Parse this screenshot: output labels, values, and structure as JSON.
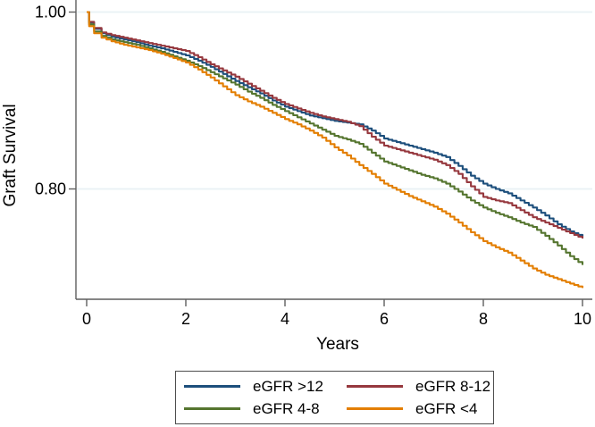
{
  "chart_data": {
    "type": "line",
    "subtype": "kaplan-meier-step",
    "title": "",
    "xlabel": "Years",
    "ylabel": "Graft Survival",
    "xlim": [
      0,
      10
    ],
    "ylim": [
      0.675,
      1.0
    ],
    "x_ticks": [
      0,
      2,
      4,
      6,
      8,
      10
    ],
    "x_tick_labels": [
      "0",
      "2",
      "4",
      "6",
      "8",
      "10"
    ],
    "y_ticks": [
      {
        "value": 1.0,
        "label": "1.00"
      },
      {
        "value": 0.8,
        "label": "0.80"
      }
    ],
    "grid": "horizontal-at-y-ticks",
    "grid_color": "#e9f1f4",
    "axis_color": "#5f5f5f",
    "legend_position": "bottom-outside-boxed",
    "series": [
      {
        "name": "eGFR >12",
        "color": "#1d4f7c",
        "points": [
          [
            0,
            1.0
          ],
          [
            0.05,
            0.988
          ],
          [
            0.15,
            0.981
          ],
          [
            0.3,
            0.976
          ],
          [
            0.5,
            0.972
          ],
          [
            0.75,
            0.969
          ],
          [
            1,
            0.966
          ],
          [
            1.25,
            0.962
          ],
          [
            1.5,
            0.959
          ],
          [
            1.75,
            0.955
          ],
          [
            2,
            0.951
          ],
          [
            2.25,
            0.945
          ],
          [
            2.5,
            0.938
          ],
          [
            2.75,
            0.93
          ],
          [
            3,
            0.922
          ],
          [
            3.25,
            0.915
          ],
          [
            3.5,
            0.908
          ],
          [
            3.75,
            0.9
          ],
          [
            4,
            0.893
          ],
          [
            4.25,
            0.888
          ],
          [
            4.5,
            0.883
          ],
          [
            4.75,
            0.88
          ],
          [
            5,
            0.877
          ],
          [
            5.25,
            0.875
          ],
          [
            5.5,
            0.873
          ],
          [
            5.75,
            0.866
          ],
          [
            6,
            0.857
          ],
          [
            6.25,
            0.853
          ],
          [
            6.5,
            0.849
          ],
          [
            6.75,
            0.845
          ],
          [
            7,
            0.841
          ],
          [
            7.25,
            0.836
          ],
          [
            7.5,
            0.826
          ],
          [
            7.75,
            0.815
          ],
          [
            8,
            0.806
          ],
          [
            8.25,
            0.8
          ],
          [
            8.5,
            0.795
          ],
          [
            8.75,
            0.787
          ],
          [
            9,
            0.779
          ],
          [
            9.25,
            0.77
          ],
          [
            9.5,
            0.76
          ],
          [
            9.75,
            0.752
          ],
          [
            10,
            0.746
          ]
        ]
      },
      {
        "name": "eGFR 8-12",
        "color": "#96383e",
        "points": [
          [
            0,
            1.0
          ],
          [
            0.05,
            0.989
          ],
          [
            0.15,
            0.982
          ],
          [
            0.3,
            0.977
          ],
          [
            0.5,
            0.974
          ],
          [
            0.75,
            0.971
          ],
          [
            1,
            0.968
          ],
          [
            1.25,
            0.965
          ],
          [
            1.5,
            0.962
          ],
          [
            1.75,
            0.959
          ],
          [
            2,
            0.956
          ],
          [
            2.25,
            0.949
          ],
          [
            2.5,
            0.941
          ],
          [
            2.75,
            0.934
          ],
          [
            3,
            0.927
          ],
          [
            3.25,
            0.919
          ],
          [
            3.5,
            0.911
          ],
          [
            3.75,
            0.903
          ],
          [
            4,
            0.896
          ],
          [
            4.25,
            0.891
          ],
          [
            4.5,
            0.886
          ],
          [
            4.75,
            0.882
          ],
          [
            5,
            0.879
          ],
          [
            5.25,
            0.876
          ],
          [
            5.5,
            0.871
          ],
          [
            5.75,
            0.859
          ],
          [
            6,
            0.849
          ],
          [
            6.25,
            0.845
          ],
          [
            6.5,
            0.841
          ],
          [
            6.75,
            0.837
          ],
          [
            7,
            0.833
          ],
          [
            7.25,
            0.827
          ],
          [
            7.5,
            0.817
          ],
          [
            7.75,
            0.803
          ],
          [
            8,
            0.791
          ],
          [
            8.25,
            0.787
          ],
          [
            8.5,
            0.784
          ],
          [
            8.75,
            0.776
          ],
          [
            9,
            0.768
          ],
          [
            9.25,
            0.762
          ],
          [
            9.5,
            0.756
          ],
          [
            9.75,
            0.75
          ],
          [
            10,
            0.744
          ]
        ]
      },
      {
        "name": "eGFR 4-8",
        "color": "#55752f",
        "points": [
          [
            0,
            1.0
          ],
          [
            0.05,
            0.986
          ],
          [
            0.15,
            0.978
          ],
          [
            0.3,
            0.973
          ],
          [
            0.5,
            0.969
          ],
          [
            0.75,
            0.966
          ],
          [
            1,
            0.963
          ],
          [
            1.25,
            0.959
          ],
          [
            1.5,
            0.955
          ],
          [
            1.75,
            0.95
          ],
          [
            2,
            0.945
          ],
          [
            2.25,
            0.939
          ],
          [
            2.5,
            0.932
          ],
          [
            2.75,
            0.925
          ],
          [
            3,
            0.918
          ],
          [
            3.25,
            0.91
          ],
          [
            3.5,
            0.903
          ],
          [
            3.75,
            0.895
          ],
          [
            4,
            0.888
          ],
          [
            4.25,
            0.881
          ],
          [
            4.5,
            0.874
          ],
          [
            4.75,
            0.867
          ],
          [
            5,
            0.86
          ],
          [
            5.25,
            0.856
          ],
          [
            5.5,
            0.851
          ],
          [
            5.75,
            0.841
          ],
          [
            6,
            0.831
          ],
          [
            6.25,
            0.826
          ],
          [
            6.5,
            0.821
          ],
          [
            6.75,
            0.816
          ],
          [
            7,
            0.812
          ],
          [
            7.25,
            0.806
          ],
          [
            7.5,
            0.797
          ],
          [
            7.75,
            0.787
          ],
          [
            8,
            0.779
          ],
          [
            8.25,
            0.773
          ],
          [
            8.5,
            0.768
          ],
          [
            8.75,
            0.762
          ],
          [
            9,
            0.757
          ],
          [
            9.25,
            0.747
          ],
          [
            9.5,
            0.736
          ],
          [
            9.75,
            0.724
          ],
          [
            10,
            0.714
          ]
        ]
      },
      {
        "name": "eGFR <4",
        "color": "#e37e00",
        "points": [
          [
            0,
            1.0
          ],
          [
            0.05,
            0.984
          ],
          [
            0.15,
            0.976
          ],
          [
            0.3,
            0.971
          ],
          [
            0.5,
            0.967
          ],
          [
            0.75,
            0.963
          ],
          [
            1,
            0.96
          ],
          [
            1.25,
            0.957
          ],
          [
            1.5,
            0.953
          ],
          [
            1.75,
            0.948
          ],
          [
            2,
            0.943
          ],
          [
            2.25,
            0.935
          ],
          [
            2.5,
            0.926
          ],
          [
            2.75,
            0.916
          ],
          [
            3,
            0.906
          ],
          [
            3.25,
            0.899
          ],
          [
            3.5,
            0.893
          ],
          [
            3.75,
            0.886
          ],
          [
            4,
            0.879
          ],
          [
            4.25,
            0.873
          ],
          [
            4.5,
            0.866
          ],
          [
            4.75,
            0.858
          ],
          [
            5,
            0.847
          ],
          [
            5.25,
            0.838
          ],
          [
            5.5,
            0.827
          ],
          [
            5.75,
            0.817
          ],
          [
            6,
            0.806
          ],
          [
            6.25,
            0.799
          ],
          [
            6.5,
            0.792
          ],
          [
            6.75,
            0.786
          ],
          [
            7,
            0.78
          ],
          [
            7.25,
            0.772
          ],
          [
            7.5,
            0.762
          ],
          [
            7.75,
            0.751
          ],
          [
            8,
            0.741
          ],
          [
            8.25,
            0.734
          ],
          [
            8.5,
            0.728
          ],
          [
            8.75,
            0.719
          ],
          [
            9,
            0.71
          ],
          [
            9.25,
            0.703
          ],
          [
            9.5,
            0.698
          ],
          [
            9.75,
            0.693
          ],
          [
            10,
            0.688
          ]
        ]
      }
    ]
  }
}
